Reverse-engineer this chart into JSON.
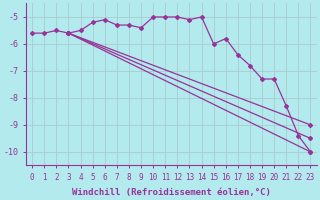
{
  "background_color": "#b2eaed",
  "grid_color": "#aacccc",
  "line_color": "#993399",
  "xlim": [
    -0.5,
    23.5
  ],
  "ylim": [
    -10.5,
    -4.5
  ],
  "yticks": [
    -10,
    -9,
    -8,
    -7,
    -6,
    -5
  ],
  "xticks": [
    0,
    1,
    2,
    3,
    4,
    5,
    6,
    7,
    8,
    9,
    10,
    11,
    12,
    13,
    14,
    15,
    16,
    17,
    18,
    19,
    20,
    21,
    22,
    23
  ],
  "xlabel": "Windchill (Refroidissement éolien,°C)",
  "series_wavy": {
    "x": [
      0,
      1,
      2,
      3,
      4,
      5,
      6,
      7,
      8,
      9,
      10,
      11,
      12,
      13,
      14,
      15,
      16,
      17,
      18,
      19,
      20,
      21,
      22,
      23
    ],
    "y": [
      -5.6,
      -5.6,
      -5.5,
      -5.6,
      -5.5,
      -5.2,
      -5.1,
      -5.3,
      -5.3,
      -5.4,
      -5.0,
      -5.0,
      -5.0,
      -5.1,
      -5.0,
      -6.0,
      -5.8,
      -6.4,
      -6.8,
      -7.3,
      -7.3,
      -8.3,
      -9.4,
      -10.0
    ]
  },
  "series_straight": [
    {
      "x": [
        3,
        23
      ],
      "y": [
        -5.6,
        -10.0
      ]
    },
    {
      "x": [
        3,
        23
      ],
      "y": [
        -5.6,
        -9.5
      ]
    },
    {
      "x": [
        3,
        23
      ],
      "y": [
        -5.6,
        -9.0
      ]
    }
  ],
  "marker": "D",
  "marker_size": 2.0,
  "linewidth": 0.9,
  "xlabel_fontsize": 6.5,
  "tick_fontsize": 5.5
}
